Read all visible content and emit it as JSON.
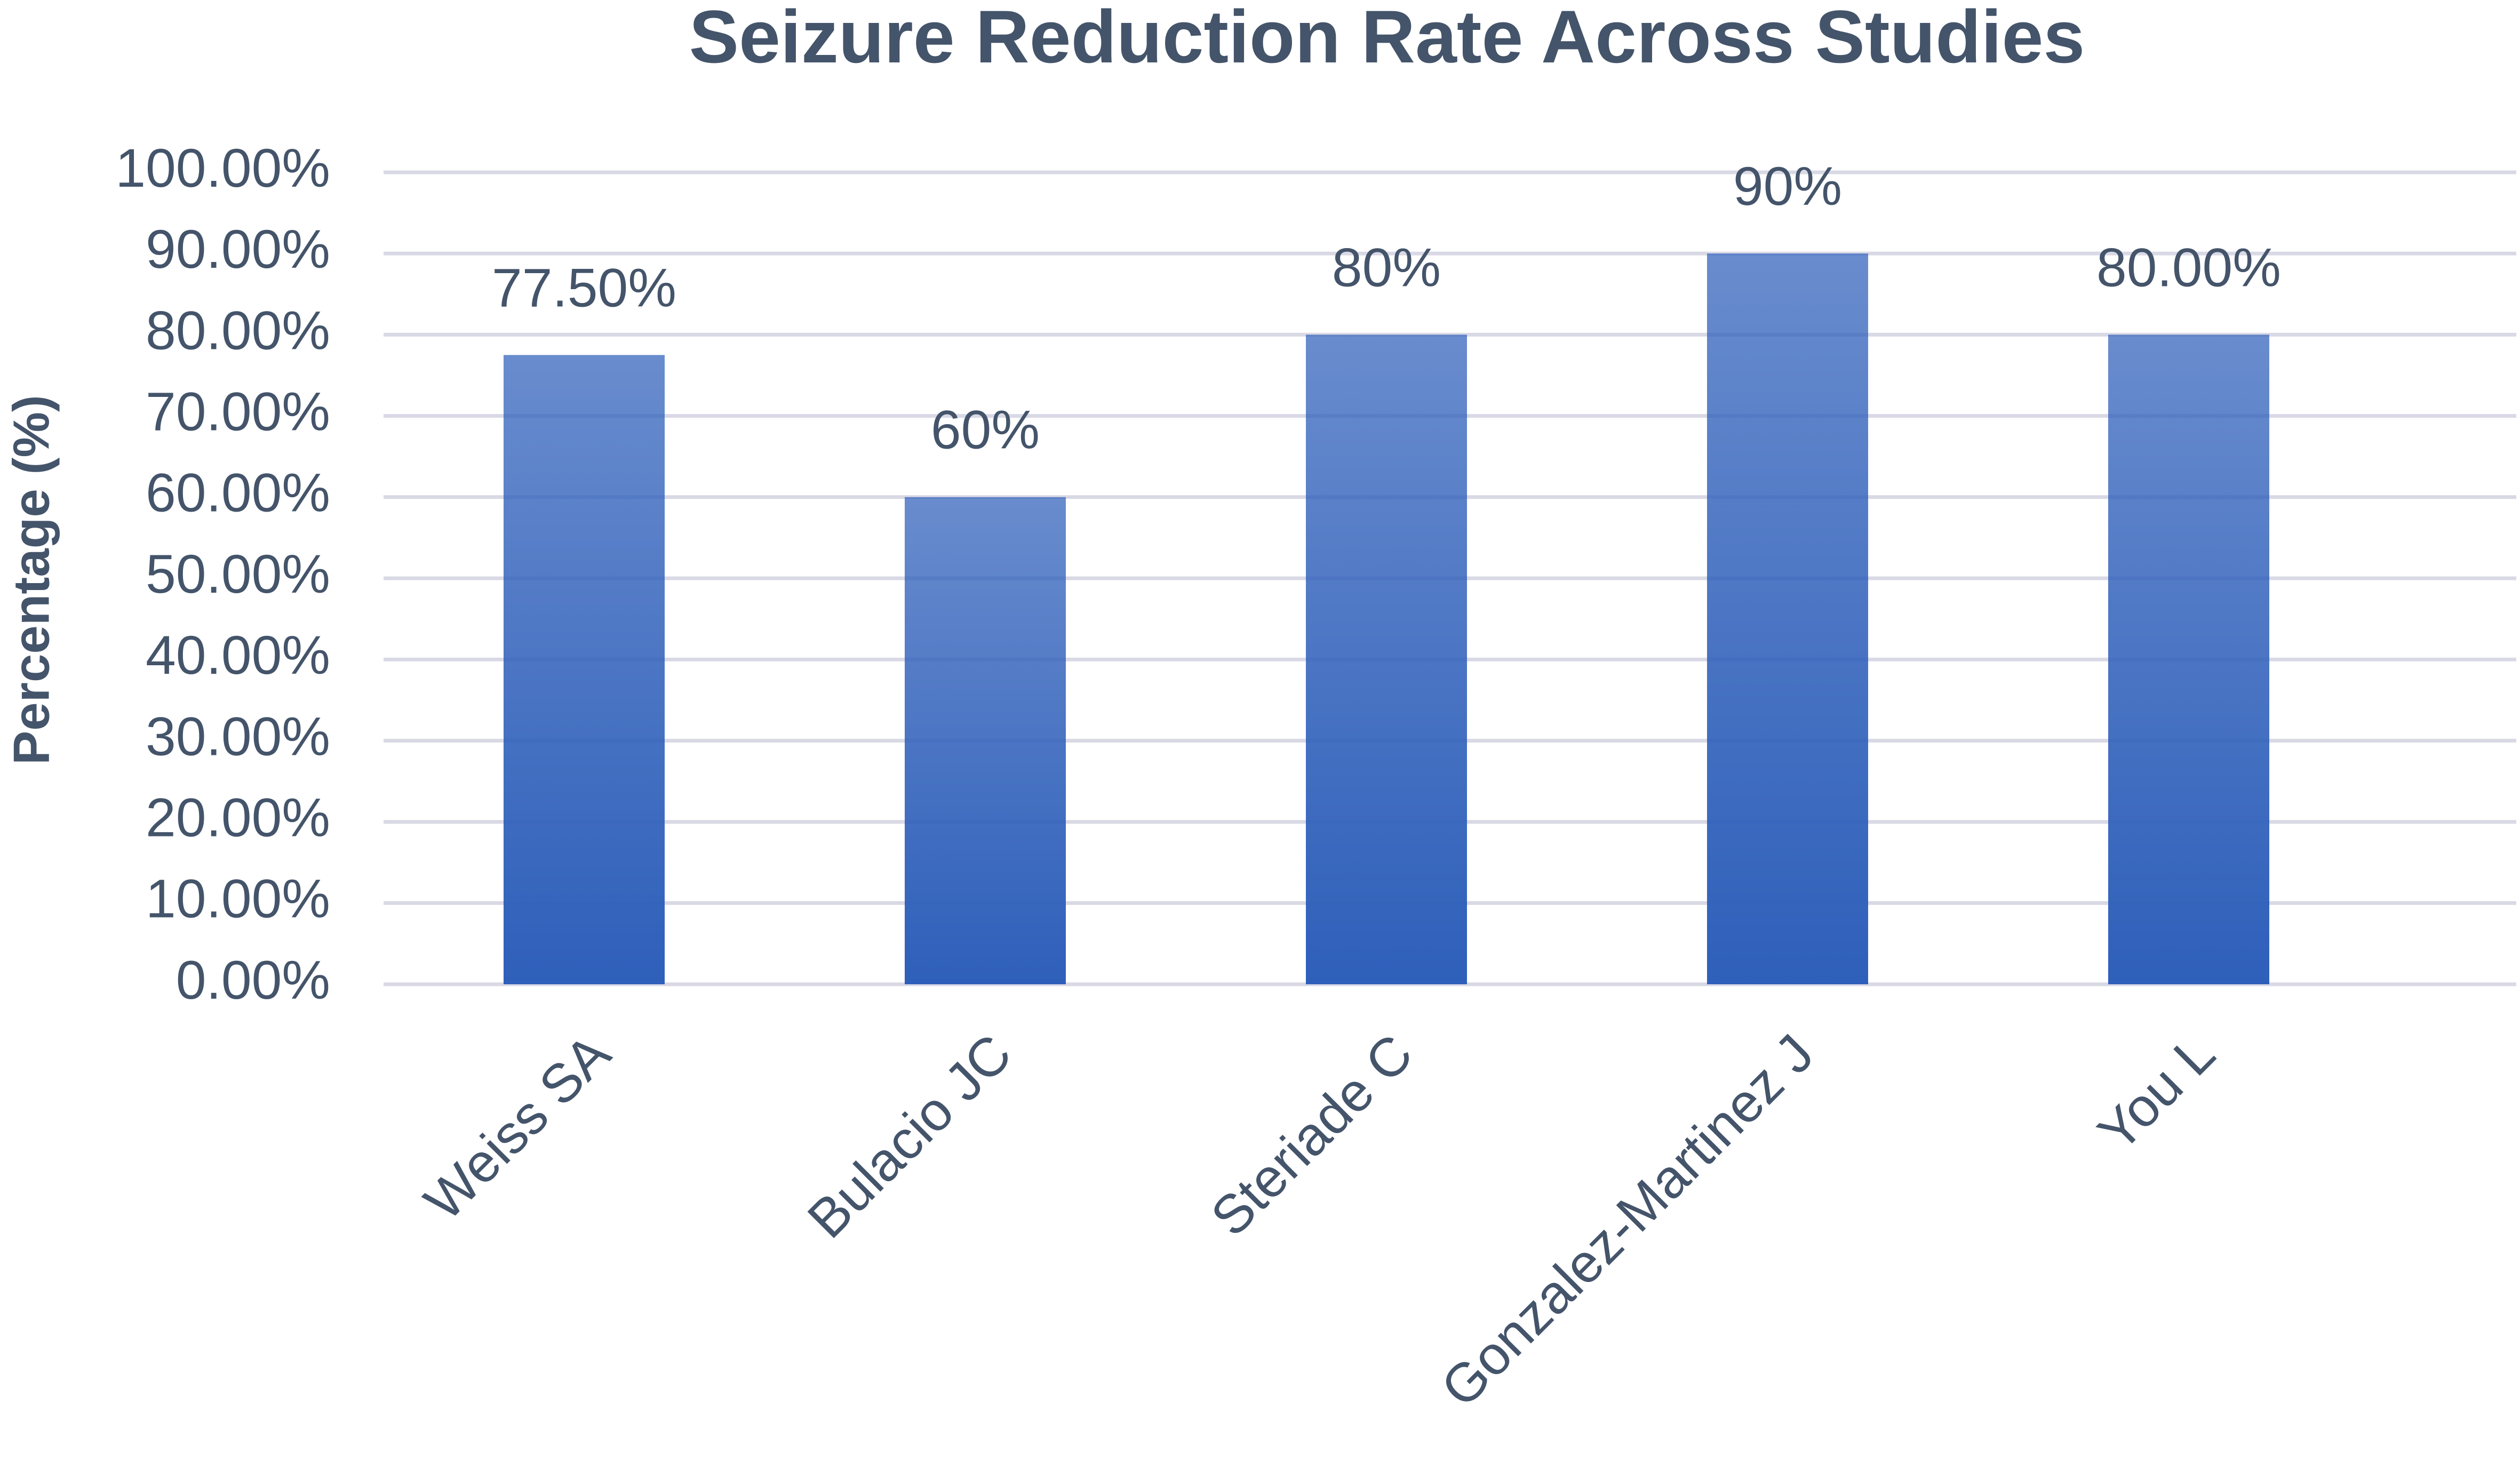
{
  "chart_data": {
    "type": "bar",
    "title": "Seizure Reduction Rate Across Studies",
    "y_label": "Percentage (%)",
    "categories": [
      "Weiss SA",
      "Bulacio JC",
      "Steriade C",
      "Gonzalez-Martinez J",
      "You L"
    ],
    "values": [
      77.5,
      60,
      80,
      90,
      80
    ],
    "value_labels": [
      "77.50%",
      "60%",
      "80%",
      "90%",
      "80.00%"
    ],
    "color": "#2e5fba",
    "ylim": [
      0,
      100
    ],
    "yticks": [
      {
        "value": 0,
        "label": "0.00%"
      },
      {
        "value": 10,
        "label": "10.00%"
      },
      {
        "value": 20,
        "label": "20.00%"
      },
      {
        "value": 30,
        "label": "30.00%"
      },
      {
        "value": 40,
        "label": "40.00%"
      },
      {
        "value": 50,
        "label": "50.00%"
      },
      {
        "value": 60,
        "label": "60.00%"
      },
      {
        "value": 70,
        "label": "70.00%"
      },
      {
        "value": 80,
        "label": "80.00%"
      },
      {
        "value": 90,
        "label": "90.00%"
      },
      {
        "value": 100,
        "label": "100.00%"
      }
    ],
    "grid": true
  }
}
